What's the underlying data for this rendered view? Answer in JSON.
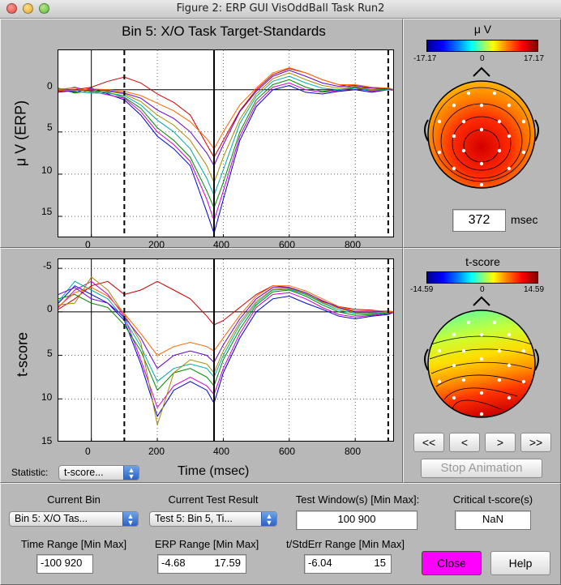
{
  "window": {
    "title": "Figure 2: ERP GUI VisOddBall Task Run2"
  },
  "erp_plot": {
    "title": "Bin 5: X/O Task Target-Standards",
    "ylabel": "μ V (ERP)",
    "x_ticks": [
      "0",
      "200",
      "400",
      "600",
      "800"
    ],
    "y_ticks": [
      "0",
      "5",
      "10",
      "15"
    ]
  },
  "tscore_plot": {
    "ylabel": "t-score",
    "xlabel": "Time (msec)",
    "x_ticks": [
      "0",
      "200",
      "400",
      "600",
      "800"
    ],
    "y_ticks": [
      "-5",
      "0",
      "5",
      "10",
      "15"
    ]
  },
  "erp_topo": {
    "title": "μ V",
    "cmin": "-17.17",
    "cmid": "0",
    "cmax": "17.17",
    "time_value": "372",
    "time_unit": "msec"
  },
  "tscore_topo": {
    "title": "t-score",
    "cmin": "-14.59",
    "cmid": "0",
    "cmax": "14.59"
  },
  "controls": {
    "statistic_label": "Statistic:",
    "statistic_value": "t-score...",
    "nav": {
      "first": "<<",
      "prev": "<",
      "next": ">",
      "last": ">>"
    },
    "stop_animation": "Stop Animation",
    "current_bin_label": "Current Bin",
    "current_bin_value": "Bin 5: X/O Tas...",
    "current_test_label": "Current Test Result",
    "current_test_value": "Test 5: Bin 5, Ti...",
    "test_window_label": "Test Window(s) [Min Max]:",
    "test_window_value": "100  900",
    "critical_label": "Critical t-score(s)",
    "critical_value": "NaN",
    "time_range_label": "Time Range [Min Max]",
    "time_range_value": "-100  920",
    "erp_range_label": "ERP Range [Min Max]",
    "erp_range_min": "-4.68",
    "erp_range_max": "17.59",
    "tstd_range_label": "t/StdErr Range [Min Max]",
    "tstd_range_min": "-6.04",
    "tstd_range_max": "15",
    "close": "Close",
    "help": "Help"
  },
  "colors": {
    "close_button": "#ff00ff",
    "background": "#b8b8b8"
  },
  "chart_data": [
    {
      "type": "line",
      "title": "Bin 5: X/O Task Target-Standards",
      "ylabel": "μ V (ERP)",
      "xlim": [
        -100,
        920
      ],
      "ylim": [
        -4.68,
        17.59
      ],
      "y_reversed": true,
      "x_ticks": [
        0,
        200,
        400,
        600,
        800
      ],
      "y_ticks": [
        0,
        5,
        10,
        15
      ],
      "vlines_dashed": [
        100,
        900
      ],
      "vline_solid": 372,
      "x": [
        -100,
        -50,
        0,
        50,
        100,
        150,
        200,
        250,
        300,
        350,
        372,
        400,
        450,
        500,
        550,
        600,
        650,
        700,
        750,
        800,
        850,
        900,
        920
      ],
      "series": [
        {
          "color": "#0000cc",
          "values": [
            0.0,
            0.3,
            -0.2,
            0.5,
            1.2,
            3.0,
            5.5,
            7.0,
            9.0,
            14.5,
            17.0,
            13.0,
            6.0,
            2.0,
            0.0,
            -0.5,
            0.3,
            0.5,
            0.2,
            0.0,
            0.3,
            0.0,
            0.0
          ]
        },
        {
          "color": "#cc00cc",
          "values": [
            0.1,
            -0.3,
            0.2,
            0.6,
            1.0,
            2.6,
            5.0,
            6.5,
            8.5,
            13.0,
            15.5,
            12.0,
            5.5,
            1.6,
            -0.3,
            -0.8,
            0.0,
            0.3,
            0.1,
            -0.2,
            0.2,
            0.0,
            0.1
          ]
        },
        {
          "color": "#008800",
          "values": [
            -0.2,
            0.4,
            0.1,
            0.3,
            0.9,
            2.2,
            4.5,
            6.0,
            8.0,
            12.0,
            14.0,
            11.0,
            5.0,
            1.2,
            -0.6,
            -1.2,
            -0.3,
            0.2,
            0.0,
            -0.3,
            0.1,
            -0.1,
            0.0
          ]
        },
        {
          "color": "#cc0000",
          "values": [
            0.2,
            0.0,
            -0.3,
            -1.0,
            -1.5,
            -0.8,
            0.5,
            1.5,
            3.0,
            6.5,
            8.0,
            6.0,
            2.5,
            0.0,
            -1.8,
            -2.5,
            -2.0,
            -1.2,
            -0.6,
            -0.3,
            -0.2,
            -0.1,
            0.0
          ]
        },
        {
          "color": "#00aaaa",
          "values": [
            0.0,
            0.2,
            0.4,
            0.4,
            0.7,
            1.8,
            3.6,
            5.0,
            7.0,
            10.5,
            12.5,
            9.5,
            4.0,
            0.8,
            -1.0,
            -1.6,
            -0.8,
            -0.2,
            0.0,
            -0.2,
            0.1,
            0.0,
            0.1
          ]
        },
        {
          "color": "#aa8800",
          "values": [
            -0.1,
            -0.2,
            0.3,
            0.2,
            0.5,
            1.4,
            3.0,
            4.2,
            6.0,
            9.0,
            11.0,
            8.0,
            3.5,
            0.5,
            -1.3,
            -2.0,
            -1.2,
            -0.5,
            -0.2,
            -0.4,
            0.0,
            -0.2,
            0.0
          ]
        },
        {
          "color": "#6600cc",
          "values": [
            0.3,
            0.1,
            0.0,
            0.1,
            0.4,
            1.0,
            2.4,
            3.4,
            5.0,
            7.5,
            9.0,
            6.5,
            2.6,
            0.2,
            -1.6,
            -2.3,
            -1.6,
            -0.8,
            -0.4,
            -0.5,
            -0.2,
            -0.1,
            0.0
          ]
        },
        {
          "color": "#ff6600",
          "values": [
            0.0,
            0.1,
            -0.1,
            0.0,
            0.2,
            0.7,
            1.6,
            2.5,
            3.8,
            5.8,
            7.0,
            5.0,
            1.8,
            -0.2,
            -2.0,
            -2.6,
            -2.0,
            -1.2,
            -0.6,
            -0.6,
            -0.3,
            -0.2,
            0.0
          ]
        }
      ]
    },
    {
      "type": "line",
      "ylabel": "t-score",
      "xlabel": "Time (msec)",
      "xlim": [
        -100,
        920
      ],
      "ylim": [
        -6.04,
        15
      ],
      "y_reversed": true,
      "x_ticks": [
        0,
        200,
        400,
        600,
        800
      ],
      "y_ticks": [
        -5,
        0,
        5,
        10,
        15
      ],
      "vlines_dashed": [
        100,
        900
      ],
      "vline_solid": 372,
      "x": [
        -100,
        -50,
        0,
        50,
        100,
        150,
        200,
        250,
        300,
        350,
        372,
        400,
        450,
        500,
        550,
        600,
        650,
        700,
        750,
        800,
        850,
        900,
        920
      ],
      "series": [
        {
          "color": "#0000cc",
          "values": [
            -1.0,
            -3.0,
            -2.0,
            -1.0,
            1.0,
            6.0,
            12.0,
            9.0,
            8.0,
            9.0,
            10.5,
            7.0,
            3.0,
            0.0,
            -1.5,
            -1.8,
            -1.0,
            -0.3,
            0.5,
            0.8,
            0.5,
            0.3,
            0.0
          ]
        },
        {
          "color": "#cc00cc",
          "values": [
            -0.5,
            -2.5,
            -3.5,
            -2.0,
            0.5,
            5.5,
            11.0,
            8.5,
            7.5,
            8.5,
            9.5,
            6.5,
            2.5,
            -0.5,
            -2.0,
            -2.2,
            -1.5,
            -0.5,
            0.3,
            0.6,
            0.4,
            0.2,
            0.0
          ]
        },
        {
          "color": "#008800",
          "values": [
            -1.5,
            -2.0,
            -1.0,
            -0.5,
            1.5,
            4.5,
            9.0,
            7.0,
            6.5,
            7.5,
            8.5,
            5.5,
            2.0,
            -0.8,
            -2.3,
            -2.5,
            -1.8,
            -0.8,
            0.0,
            0.4,
            0.3,
            0.1,
            0.0
          ]
        },
        {
          "color": "#cc0000",
          "values": [
            -0.3,
            -1.5,
            -3.0,
            -3.5,
            -2.0,
            -2.5,
            -3.5,
            -2.5,
            -1.5,
            0.5,
            1.5,
            1.0,
            -0.5,
            -2.0,
            -3.0,
            -2.8,
            -2.0,
            -1.2,
            -0.6,
            -0.3,
            -0.2,
            0.0,
            0.0
          ]
        },
        {
          "color": "#00aaaa",
          "values": [
            -1.2,
            -3.5,
            -2.5,
            -1.5,
            0.8,
            4.0,
            8.0,
            6.5,
            6.0,
            6.5,
            7.5,
            5.0,
            1.5,
            -1.0,
            -2.5,
            -2.6,
            -2.0,
            -1.0,
            -0.2,
            0.2,
            0.2,
            0.0,
            0.0
          ]
        },
        {
          "color": "#aa8800",
          "values": [
            -0.8,
            -1.0,
            -4.0,
            -2.5,
            0.3,
            3.5,
            13.0,
            7.0,
            5.5,
            6.0,
            7.0,
            4.5,
            1.2,
            -1.2,
            -2.6,
            -2.7,
            -2.1,
            -1.1,
            -0.4,
            0.1,
            0.1,
            0.0,
            0.0
          ]
        },
        {
          "color": "#6600cc",
          "values": [
            -2.0,
            -2.8,
            -1.5,
            -1.0,
            0.6,
            3.0,
            6.5,
            5.0,
            4.5,
            5.0,
            5.8,
            3.8,
            0.8,
            -1.5,
            -2.8,
            -2.8,
            -2.2,
            -1.3,
            -0.5,
            0.0,
            0.0,
            -0.1,
            0.0
          ]
        },
        {
          "color": "#ff6600",
          "values": [
            -0.6,
            -2.2,
            -2.8,
            -1.8,
            0.2,
            2.5,
            5.0,
            4.0,
            3.5,
            4.0,
            4.5,
            3.0,
            0.4,
            -1.8,
            -3.0,
            -3.0,
            -2.4,
            -1.5,
            -0.6,
            -0.1,
            -0.1,
            -0.1,
            0.0
          ]
        }
      ]
    }
  ]
}
